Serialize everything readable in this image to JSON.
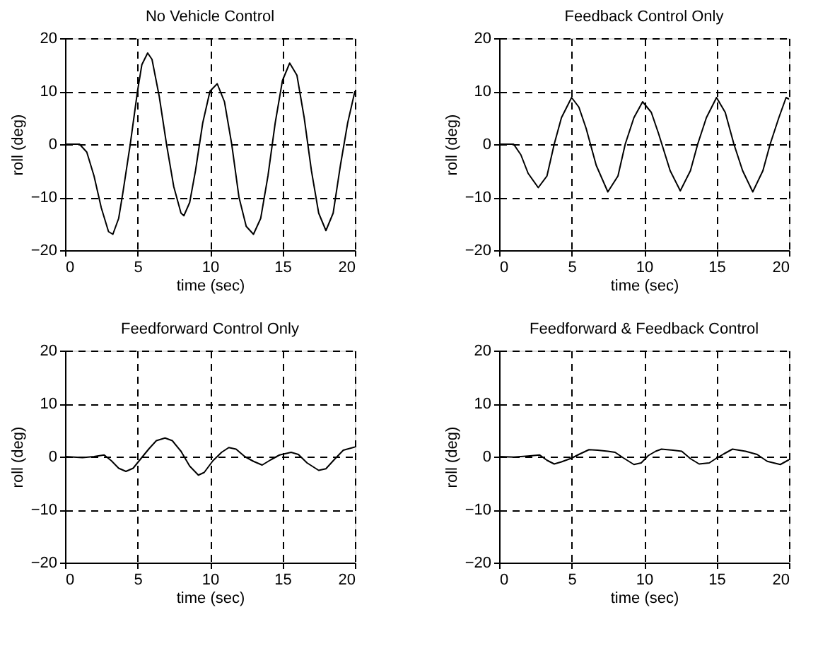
{
  "chart_data": [
    {
      "type": "line",
      "title": "No Vehicle Control",
      "xlabel": "time (sec)",
      "ylabel": "roll (deg)",
      "xlim": [
        0,
        20
      ],
      "ylim": [
        -20,
        20
      ],
      "xticks": [
        0,
        5,
        10,
        15,
        20
      ],
      "yticks": [
        -20,
        -10,
        0,
        10,
        20
      ],
      "grid": true,
      "line_style": "solid",
      "series": [
        {
          "color": "#000000",
          "x": [
            0,
            1,
            1.5,
            2,
            2.5,
            3,
            3.3,
            3.7,
            4,
            4.5,
            5,
            5.3,
            5.7,
            6,
            6.5,
            7,
            7.5,
            8,
            8.2,
            8.6,
            9,
            9.5,
            10,
            10.5,
            11,
            11.5,
            12,
            12.5,
            13,
            13.5,
            14,
            14.5,
            15,
            15.5,
            16,
            16.5,
            17,
            17.5,
            18,
            18.5,
            19,
            19.5,
            20
          ],
          "values": [
            0,
            0,
            -1.5,
            -6,
            -12,
            -16.5,
            -17,
            -14,
            -9,
            0,
            10,
            15,
            17.2,
            16,
            9,
            0,
            -8,
            -13,
            -13.5,
            -11,
            -5,
            4,
            10,
            11.4,
            8,
            0,
            -10,
            -15.5,
            -17,
            -14,
            -6,
            4,
            12,
            15.3,
            13,
            5,
            -5,
            -13,
            -16.3,
            -13,
            -4,
            4,
            10
          ]
        }
      ]
    },
    {
      "type": "line",
      "title": "Feedback Control Only",
      "xlabel": "time (sec)",
      "ylabel": "roll (deg)",
      "xlim": [
        0,
        20
      ],
      "ylim": [
        -20,
        20
      ],
      "xticks": [
        0,
        5,
        10,
        15,
        20
      ],
      "yticks": [
        -20,
        -10,
        0,
        10,
        20
      ],
      "grid": true,
      "line_style": "solid",
      "series": [
        {
          "color": "#000000",
          "x": [
            0,
            1,
            1.5,
            2,
            2.7,
            3.3,
            3.8,
            4.3,
            5,
            5.5,
            6,
            6.7,
            7.5,
            8.2,
            8.7,
            9.3,
            9.9,
            10.5,
            11,
            11.8,
            12.5,
            13.2,
            13.7,
            14.3,
            15,
            15.6,
            16.2,
            16.8,
            17.5,
            18.2,
            18.7,
            19.3,
            19.8,
            20
          ],
          "values": [
            0,
            0,
            -2,
            -5.5,
            -8.2,
            -6,
            0,
            5,
            8.8,
            7,
            3,
            -4,
            -9,
            -6,
            0,
            5,
            8,
            6,
            2,
            -5,
            -8.8,
            -5,
            0,
            5,
            8.8,
            6,
            0,
            -5,
            -9,
            -5,
            0,
            5,
            8.8,
            8.5
          ]
        }
      ]
    },
    {
      "type": "line",
      "title": "Feedforward Control Only",
      "xlabel": "time (sec)",
      "ylabel": "roll (deg)",
      "xlim": [
        0,
        20
      ],
      "ylim": [
        -20,
        20
      ],
      "xticks": [
        0,
        5,
        10,
        15,
        20
      ],
      "yticks": [
        -20,
        -10,
        0,
        10,
        20
      ],
      "grid": true,
      "line_style": "solid",
      "series": [
        {
          "color": "#000000",
          "x": [
            0,
            1.2,
            2,
            2.7,
            3.2,
            3.7,
            4.2,
            4.7,
            5.2,
            5.8,
            6.3,
            6.9,
            7.4,
            8,
            8.6,
            9.2,
            9.6,
            10.2,
            10.8,
            11.3,
            11.8,
            12.4,
            13,
            13.6,
            14.2,
            14.8,
            15.6,
            16.1,
            16.7,
            17.5,
            18,
            18.6,
            19.2,
            20
          ],
          "values": [
            0,
            -0.2,
            0,
            0.3,
            -0.8,
            -2.2,
            -2.8,
            -2.2,
            -0.5,
            1.5,
            3,
            3.5,
            3,
            1,
            -1.8,
            -3.5,
            -3,
            -0.8,
            0.8,
            1.7,
            1.4,
            0,
            -0.9,
            -1.6,
            -0.6,
            0.3,
            0.8,
            0.4,
            -1.2,
            -2.6,
            -2.3,
            -0.5,
            1.2,
            1.8
          ]
        }
      ]
    },
    {
      "type": "line",
      "title": "Feedforward & Feedback Control",
      "xlabel": "time (sec)",
      "ylabel": "roll (deg)",
      "xlim": [
        0,
        20
      ],
      "ylim": [
        -20,
        20
      ],
      "xticks": [
        0,
        5,
        10,
        15,
        20
      ],
      "yticks": [
        -20,
        -10,
        0,
        10,
        20
      ],
      "grid": true,
      "line_style": "solid",
      "series": [
        {
          "color": "#000000",
          "x": [
            0,
            1,
            2,
            2.8,
            3.3,
            3.8,
            4.3,
            5,
            5.5,
            6.2,
            6.8,
            7.5,
            8,
            8.6,
            9.3,
            9.8,
            10.3,
            10.8,
            11.2,
            12,
            12.6,
            13.2,
            13.8,
            14.5,
            15,
            15.5,
            16.1,
            17,
            17.8,
            18.5,
            19.4,
            20
          ],
          "values": [
            0,
            -0.1,
            0.1,
            0.3,
            -0.7,
            -1.4,
            -1,
            -0.3,
            0.4,
            1.3,
            1.2,
            1,
            0.8,
            -0.3,
            -1.5,
            -1.2,
            0.2,
            1,
            1.4,
            1.2,
            1,
            -0.4,
            -1.4,
            -1.2,
            -0.3,
            0.5,
            1.4,
            1,
            0.4,
            -0.9,
            -1.5,
            -0.6
          ]
        }
      ]
    }
  ]
}
